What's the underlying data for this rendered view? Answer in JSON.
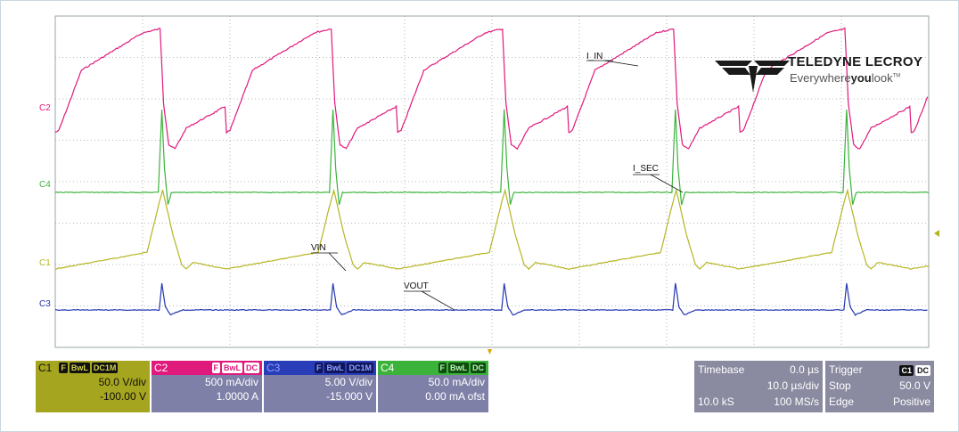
{
  "brand": {
    "name": "TELEDYNE LECROY",
    "tagline_prefix": "Everywhere",
    "tagline_bold": "you",
    "tagline_suffix": "look",
    "tm": "TM"
  },
  "channel_labels": [
    "C2",
    "C4",
    "C1",
    "C3"
  ],
  "colors": {
    "c1": "#b5b522",
    "c2": "#e0197d",
    "c3": "#2336b0",
    "c4": "#3bb33b",
    "grid": "#9aa3a8",
    "panel": "#7f80a8"
  },
  "chart_data": {
    "type": "line",
    "x_unit": "µs",
    "xlim": [
      0,
      100
    ],
    "x_divisions": 10,
    "y_divisions": 8,
    "grid": true,
    "period_us": 19.6,
    "first_edge_us": 12.4,
    "annotations": [
      "I_IN",
      "I_SEC",
      "VIN",
      "VOUT"
    ],
    "series": [
      {
        "name": "I_IN",
        "channel": "C2",
        "scale": "500 mA/div",
        "offset": "1.0000 A",
        "baseline_A": 1.35,
        "per_period_points": [
          [
            0,
            1.0
          ],
          [
            0.4,
            1.02
          ],
          [
            3.0,
            1.75
          ],
          [
            10.0,
            2.2
          ],
          [
            12.0,
            2.25
          ],
          [
            12.4,
            1.35
          ],
          [
            13.0,
            0.85
          ],
          [
            13.7,
            0.8
          ],
          [
            15.0,
            1.05
          ],
          [
            19.6,
            1.32
          ]
        ]
      },
      {
        "name": "I_SEC",
        "channel": "C4",
        "scale": "50.0 mA/div",
        "offset": "0.00 mA ofst",
        "baseline_mA": 0,
        "per_period_points": [
          [
            0,
            0
          ],
          [
            11.8,
            0
          ],
          [
            12.2,
            100
          ],
          [
            12.5,
            30
          ],
          [
            12.9,
            -15
          ],
          [
            13.3,
            0
          ],
          [
            19.6,
            0
          ]
        ]
      },
      {
        "name": "VIN",
        "channel": "C1",
        "scale": "50.0 V/div",
        "offset": "-100.00 V",
        "baseline_V": 0,
        "per_period_points": [
          [
            0,
            0
          ],
          [
            10.5,
            20
          ],
          [
            11.9,
            80
          ],
          [
            12.3,
            95
          ],
          [
            13.5,
            40
          ],
          [
            14.5,
            5
          ],
          [
            15.0,
            0
          ],
          [
            15.8,
            8
          ],
          [
            19.6,
            0
          ]
        ]
      },
      {
        "name": "VOUT",
        "channel": "C3",
        "scale": "5.00 V/div",
        "offset": "-15.000 V",
        "baseline_V": 0,
        "per_period_points": [
          [
            0,
            0
          ],
          [
            11.9,
            0
          ],
          [
            12.2,
            3.2
          ],
          [
            12.6,
            0.4
          ],
          [
            13.2,
            -0.6
          ],
          [
            14.5,
            0
          ],
          [
            19.6,
            0
          ]
        ]
      }
    ]
  },
  "panels": [
    {
      "id": "c1",
      "name": "C1",
      "tags": [
        "F",
        "BwL",
        "DC1M"
      ],
      "scale": "50.0 V/div",
      "offset": "-100.00 V"
    },
    {
      "id": "c2",
      "name": "C2",
      "tags": [
        "F",
        "BwL",
        "DC"
      ],
      "scale": "500 mA/div",
      "offset": "1.0000 A"
    },
    {
      "id": "c3",
      "name": "C3",
      "tags": [
        "F",
        "BwL",
        "DC1M"
      ],
      "scale": "5.00 V/div",
      "offset": "-15.000 V"
    },
    {
      "id": "c4",
      "name": "C4",
      "tags": [
        "F",
        "BwL",
        "DC"
      ],
      "scale": "50.0 mA/div",
      "offset": "0.00 mA ofst"
    }
  ],
  "timebase": {
    "label": "Timebase",
    "delay": "0.0 µs",
    "per_div": "10.0 µs/div",
    "samples": "10.0 kS",
    "rate": "100 MS/s"
  },
  "trigger": {
    "label": "Trigger",
    "source": "C1",
    "coupling": "DC",
    "mode": "Stop",
    "level": "50.0 V",
    "type": "Edge",
    "slope": "Positive"
  }
}
